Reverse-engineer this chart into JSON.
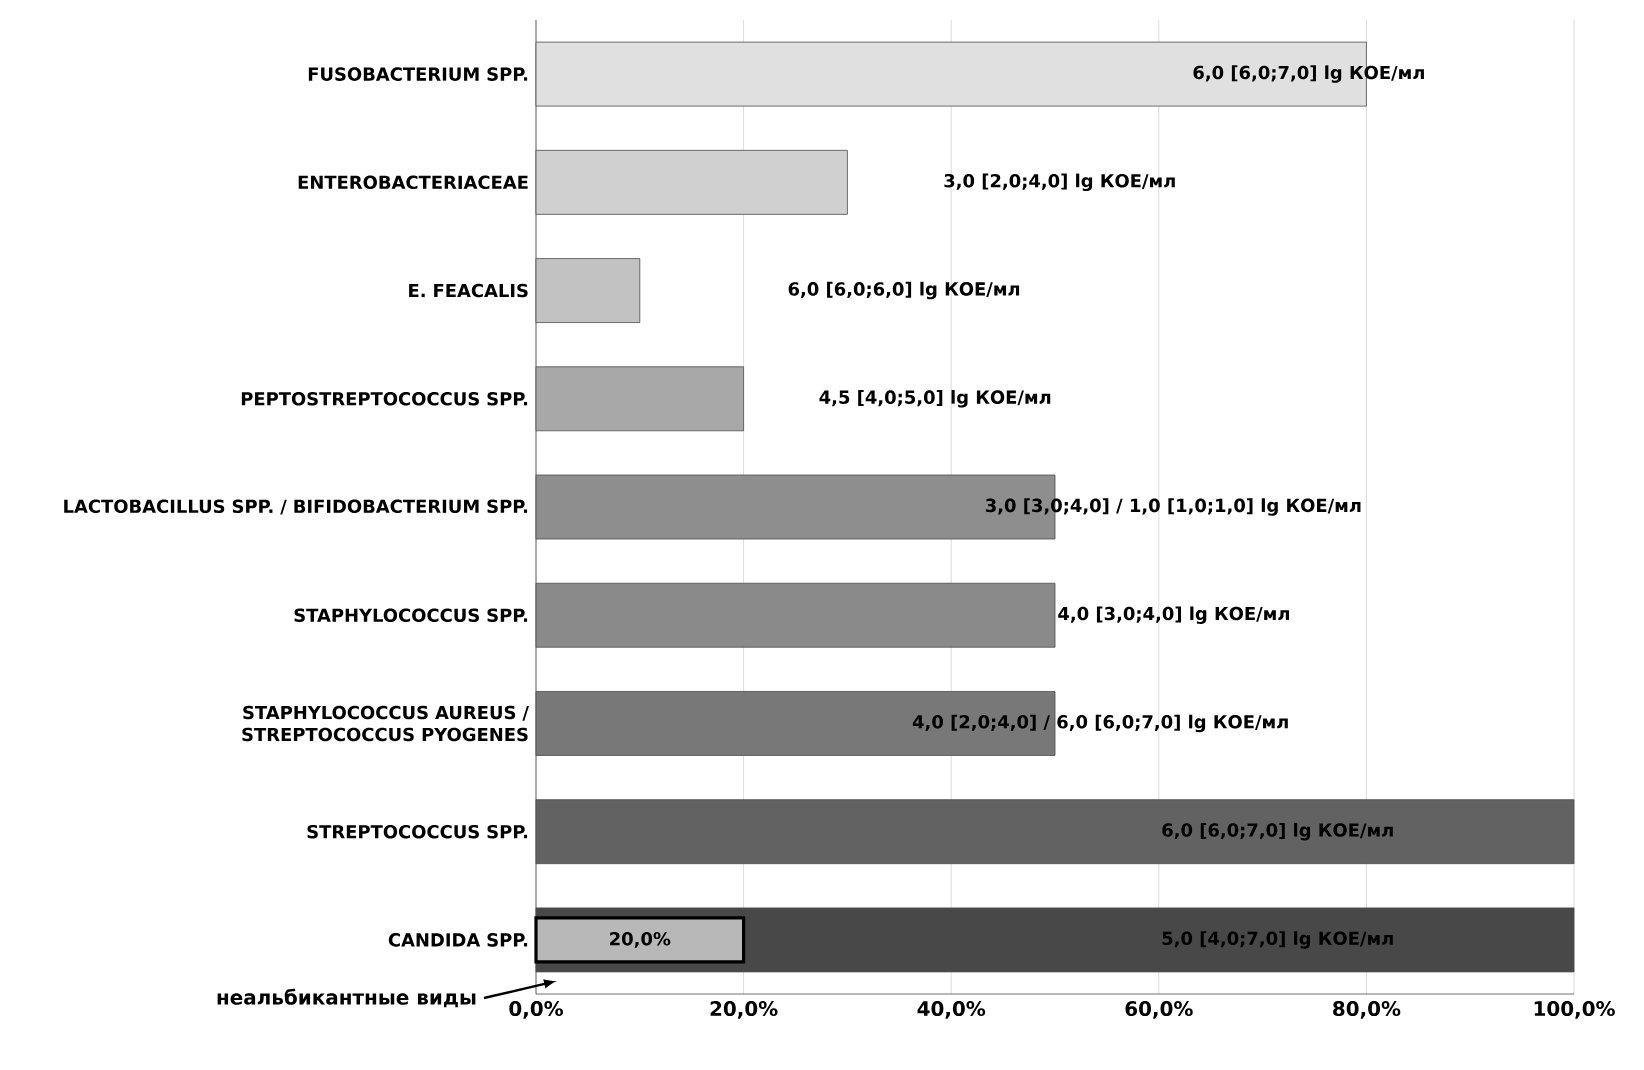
{
  "chart_data": {
    "type": "bar",
    "orientation": "horizontal",
    "categories": [
      "FUSOBACTERIUM SPP.",
      "ENTEROBACTERIACEAE",
      "E. FEACALIS",
      "PEPTOSTREPTOCOCCUS SPP.",
      "LACTOBACILLUS SPP. / BIFIDOBACTERIUM SPP.",
      "STAPHYLOCOCCUS SPP.",
      "STAPHYLOCOCCUS AUREUS / STREPTOCOCCUS PYOGENES",
      "STREPTOCOCCUS SPP.",
      "CANDIDA SPP."
    ],
    "series": [
      {
        "values": [
          80,
          30,
          10,
          20,
          50,
          50,
          50,
          100,
          100
        ],
        "colors": [
          "#e0e0e0",
          "#d0d0d0",
          "#c2c2c2",
          "#a8a8a8",
          "#8e8e8e",
          "#8a8a8a",
          "#787878",
          "#626262",
          "#484848"
        ]
      },
      {
        "values": [
          null,
          null,
          null,
          null,
          null,
          null,
          null,
          null,
          20
        ],
        "color": "#b8b8b8",
        "value_labels": [
          null,
          null,
          null,
          null,
          null,
          null,
          null,
          null,
          "20,0%"
        ]
      }
    ],
    "xlim": [
      0,
      100
    ],
    "xticks": [
      {
        "value": 0,
        "label": "0,0%"
      },
      {
        "value": 20,
        "label": "20,0%"
      },
      {
        "value": 40,
        "label": "40,0%"
      },
      {
        "value": 60,
        "label": "60,0%"
      },
      {
        "value": 80,
        "label": "80,0%"
      },
      {
        "value": 100,
        "label": "100,0%"
      }
    ],
    "grid": "x",
    "annotations": [
      "6,0 [6,0;7,0] lg КОЕ/мл",
      "3,0 [2,0;4,0] lg КОЕ/мл",
      "6,0 [6,0;6,0] lg КОЕ/мл",
      "4,5 [4,0;5,0] lg КОЕ/мл",
      "3,0 [3,0;4,0]  / 1,0 [1,0;1,0]  lg КОЕ/мл",
      "4,0 [3,0;4,0] lg КОЕ/мл",
      "4,0 [2,0;4,0]  / 6,0 [6,0;7,0] lg КОЕ/мл",
      "6,0 [6,0;7,0] lg КОЕ/мл",
      "5,0 [4,0;7,0] lg КОЕ/мл",
      "неальбикантные виды"
    ]
  }
}
